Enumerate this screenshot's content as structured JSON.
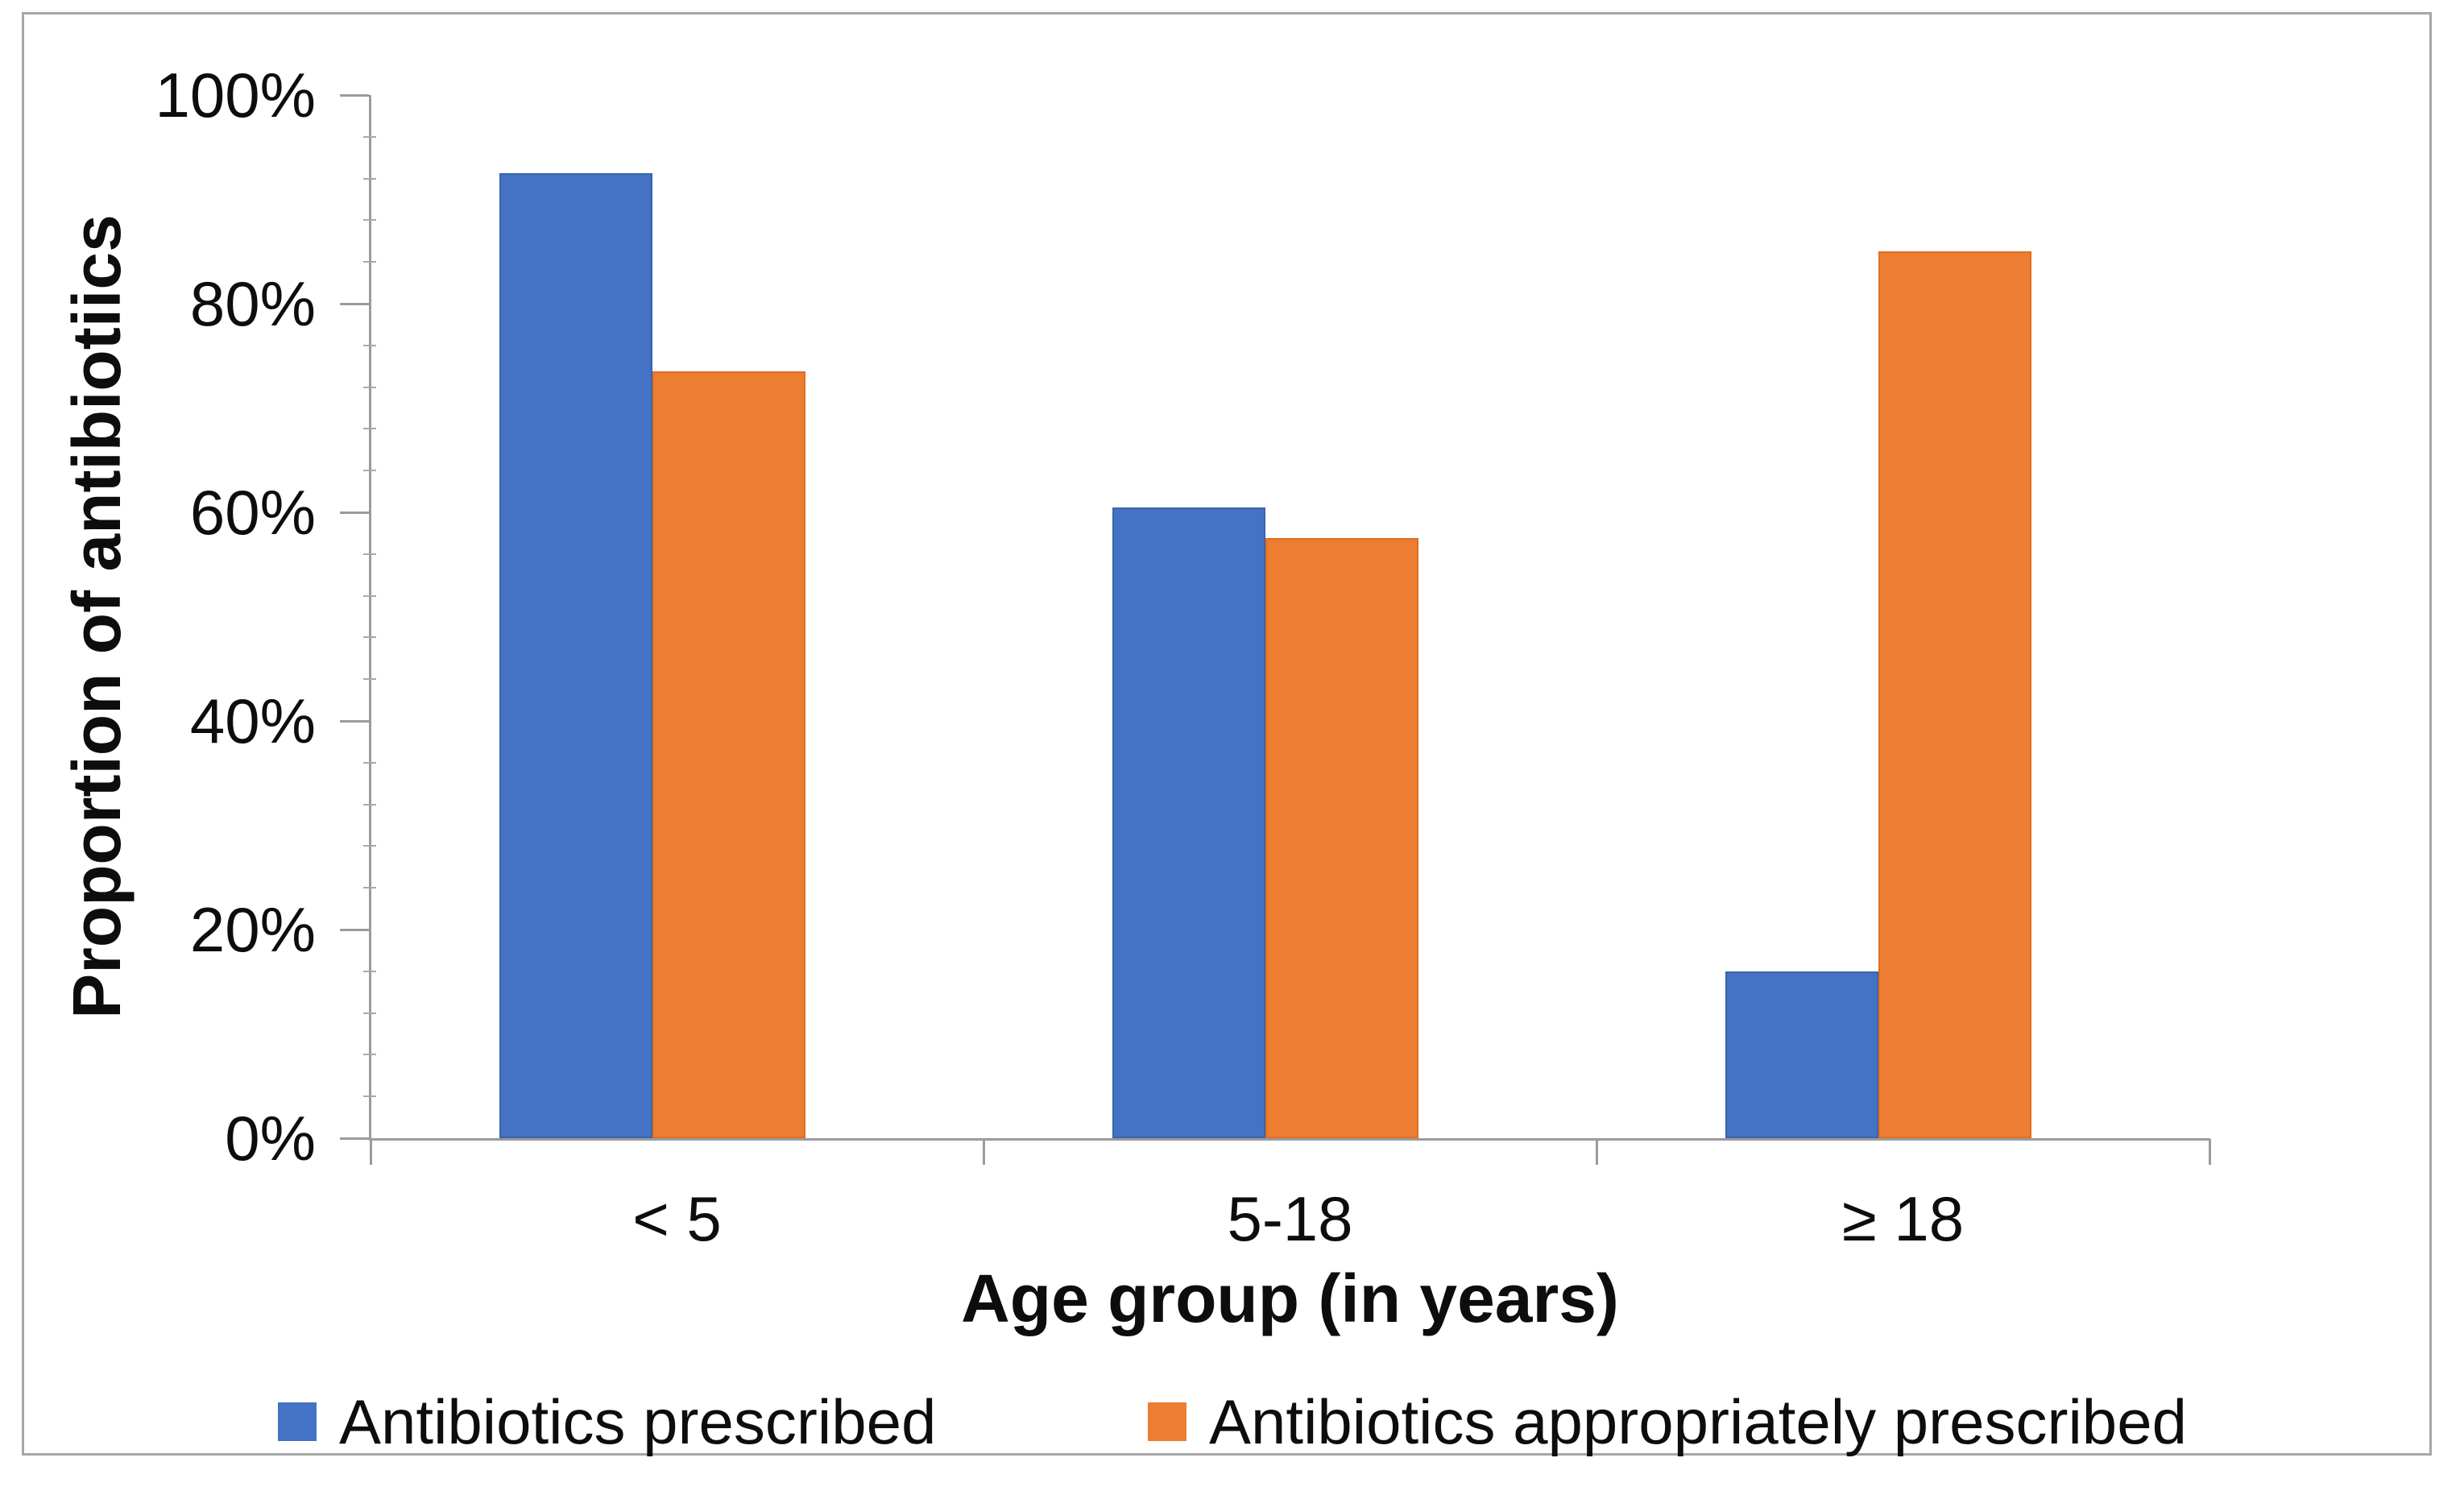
{
  "chart_data": {
    "type": "bar",
    "title": "",
    "categories": [
      "< 5",
      "5-18",
      "≥ 18"
    ],
    "series": [
      {
        "name": "Antibiotics prescribed",
        "color": "#4472C4",
        "border_color": "#3A63AF",
        "values": [
          92.5,
          60.5,
          16
        ]
      },
      {
        "name": "Antibiotics appropriately prescribed",
        "color": "#ED7D31",
        "border_color": "#DE6F22",
        "values": [
          73.5,
          57.5,
          85
        ]
      }
    ],
    "xlabel": "Age group (in years)",
    "ylabel": "Proportion of antibiotiics",
    "ylim": [
      0,
      100
    ],
    "y_tick_labels": [
      "0%",
      "20%",
      "40%",
      "60%",
      "80%",
      "100%"
    ],
    "y_major_tick_step": 20,
    "y_minor_tick_step": 4,
    "grid": false,
    "legend_position": "bottom"
  },
  "colors": {
    "axis": "#9B9B9B",
    "frame_border": "#A6A6A6",
    "text": "#0D0D0D",
    "background": "#FFFFFF"
  }
}
